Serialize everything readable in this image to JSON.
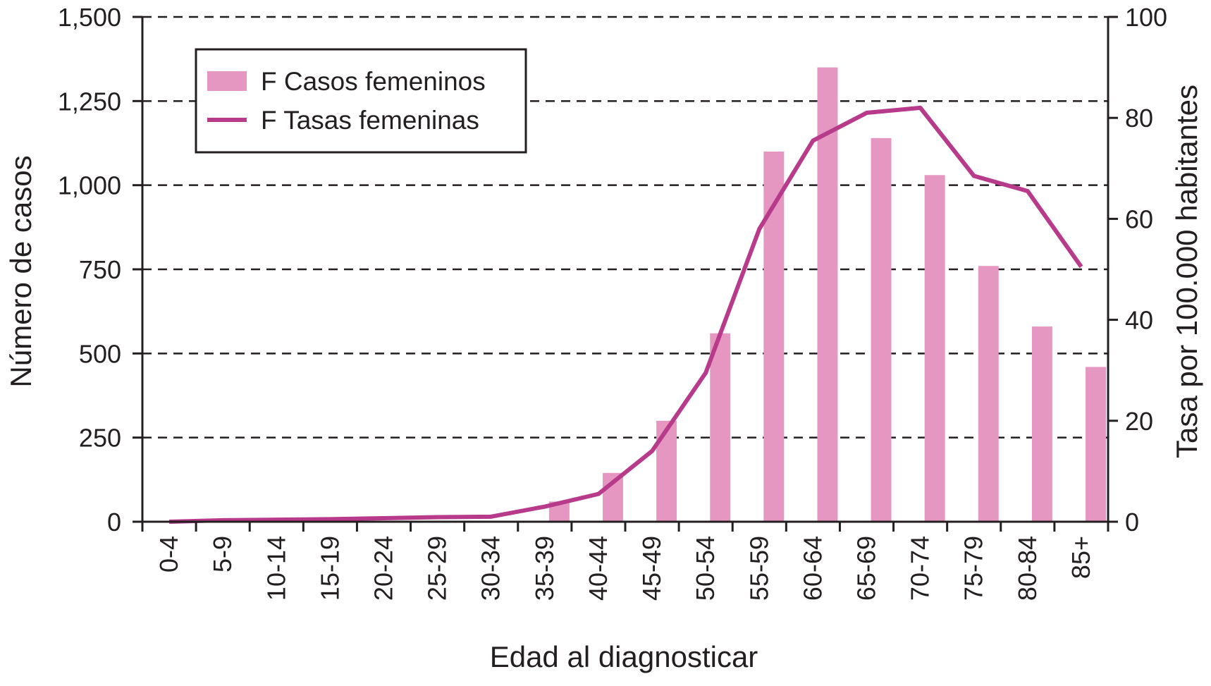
{
  "chart_data": {
    "type": "bar+line",
    "categories": [
      "0-4",
      "5-9",
      "10-14",
      "15-19",
      "20-24",
      "25-29",
      "30-34",
      "35-39",
      "40-44",
      "45-49",
      "50-54",
      "55-59",
      "60-64",
      "65-69",
      "70-74",
      "75-79",
      "80-84",
      "85+"
    ],
    "xlabel": "Edad al diagnosticar",
    "ylabel_left": "Número de casos",
    "ylabel_right": "Tasa por 100.000 habitantes",
    "ylim_left": [
      0,
      1500
    ],
    "ylim_right": [
      0,
      100
    ],
    "yticks_left": [
      "1,500",
      "1,250",
      "1,000",
      "750",
      "500",
      "250",
      "0"
    ],
    "yticks_right": [
      "100",
      "80",
      "60",
      "40",
      "20",
      "0"
    ],
    "grid": "dashed horizontal",
    "legend_position": "top-left",
    "series": [
      {
        "name": "F Casos femeninos",
        "kind": "bar",
        "axis": "left",
        "color": "#e597c2",
        "values": [
          0,
          0,
          0,
          0,
          0,
          0,
          0,
          60,
          145,
          300,
          560,
          1100,
          1350,
          1140,
          1030,
          760,
          580,
          460
        ]
      },
      {
        "name": "F Tasas femeninas",
        "kind": "line",
        "axis": "right",
        "color": "#b83a8a",
        "values": [
          0,
          0.3,
          0.4,
          0.5,
          0.7,
          0.9,
          1,
          3,
          5.5,
          14,
          29.5,
          58,
          75.5,
          81,
          82,
          68.5,
          65.5,
          50.5
        ]
      }
    ]
  }
}
